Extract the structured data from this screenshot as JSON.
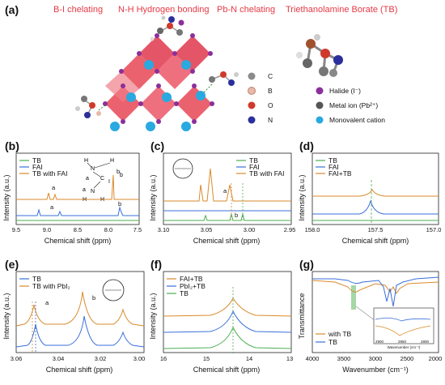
{
  "panel_a": {
    "letter": "(a)",
    "top_labels": [
      "B-I chelating",
      "N-H Hydrogen bonding",
      "Pb-N chelating",
      "Triethanolamine Borate (TB)"
    ],
    "legend": [
      {
        "label": "C",
        "color": "#8a8a8a"
      },
      {
        "label": "B",
        "color": "#e8b8a8"
      },
      {
        "label": "O",
        "color": "#d0392b"
      },
      {
        "label": "N",
        "color": "#2b2f9c"
      },
      {
        "label": "Halide (I⁻)",
        "color": "#8b2f9b"
      },
      {
        "label": "Metal ion (Pb²⁺)",
        "color": "#555555"
      },
      {
        "label": "Monovalent cation",
        "color": "#29a9e0"
      }
    ]
  },
  "panel_b": {
    "letter": "(b)",
    "legend": [
      "TB",
      "FAI",
      "TB with FAI"
    ],
    "xlabel": "Chemical shift (ppm)",
    "ylabel": "Intensity (a.u.)",
    "peak_labels": [
      "a",
      "b",
      "a",
      "b"
    ],
    "struct_labels": [
      "H",
      "H",
      "N",
      "C",
      "N",
      "H",
      "H",
      "b",
      "a",
      "a",
      "I"
    ],
    "chart_data": {
      "type": "line",
      "x": [
        9.5,
        9.0,
        8.5,
        8.0,
        7.5
      ],
      "xlim": [
        9.5,
        7.5
      ],
      "ticks": [
        "9.5",
        "9.0",
        "8.5",
        "8.0",
        "7.5"
      ],
      "series": [
        {
          "name": "TB",
          "color": "#4caf50"
        },
        {
          "name": "FAI",
          "color": "#3a6fd8"
        },
        {
          "name": "TB with FAI",
          "color": "#d98a2b"
        }
      ]
    }
  },
  "panel_c": {
    "letter": "(c)",
    "legend": [
      "TB",
      "FAI",
      "TB with FAI"
    ],
    "xlabel": "Chemical shift (ppm)",
    "ylabel": "Intensity (a.u.)",
    "peak_labels": [
      "a",
      "b"
    ],
    "chart_data": {
      "type": "line",
      "xlim": [
        3.1,
        2.95
      ],
      "ticks": [
        "3.10",
        "3.05",
        "3.00",
        "2.95"
      ],
      "series": [
        {
          "name": "TB",
          "color": "#4caf50"
        },
        {
          "name": "FAI",
          "color": "#3a6fd8"
        },
        {
          "name": "TB with FAI",
          "color": "#d98a2b"
        }
      ]
    }
  },
  "panel_d": {
    "letter": "(d)",
    "legend": [
      "TB",
      "FAI",
      "FAI+TB"
    ],
    "xlabel": "Chemical shift (ppm)",
    "ylabel": "Intensity (a.u.)",
    "chart_data": {
      "type": "line",
      "xlim": [
        158.0,
        157.0
      ],
      "ticks": [
        "158.0",
        "157.5",
        "157.0"
      ],
      "series": [
        {
          "name": "TB",
          "color": "#4caf50"
        },
        {
          "name": "FAI",
          "color": "#3a6fd8"
        },
        {
          "name": "FAI+TB",
          "color": "#d98a2b"
        }
      ]
    }
  },
  "panel_e": {
    "letter": "(e)",
    "legend": [
      "TB",
      "TB with PbI₂"
    ],
    "xlabel": "Chemical shift (ppm)",
    "ylabel": "Intensity (a.u.)",
    "peak_labels": [
      "a",
      "b"
    ],
    "chart_data": {
      "type": "line",
      "xlim": [
        3.06,
        3.0
      ],
      "ticks": [
        "3.06",
        "3.04",
        "3.02",
        "3.00"
      ],
      "series": [
        {
          "name": "TB",
          "color": "#3a6fd8"
        },
        {
          "name": "TB with PbI₂",
          "color": "#d98a2b"
        }
      ]
    }
  },
  "panel_f": {
    "letter": "(f)",
    "legend": [
      "FAI+TB",
      "PbI₂+TB",
      "TB"
    ],
    "xlabel": "Chemical shift (ppm)",
    "ylabel": "Intensity (a.u.)",
    "chart_data": {
      "type": "line",
      "xlim": [
        16,
        13
      ],
      "ticks": [
        "16",
        "15",
        "14",
        "13"
      ],
      "series": [
        {
          "name": "FAI+TB",
          "color": "#d98a2b"
        },
        {
          "name": "PbI₂+TB",
          "color": "#3a6fd8"
        },
        {
          "name": "TB",
          "color": "#4caf50"
        }
      ]
    }
  },
  "panel_g": {
    "letter": "(g)",
    "legend": [
      "with TB",
      "TB"
    ],
    "xlabel": "Wavenumber (cm⁻¹)",
    "ylabel": "Transmittance",
    "inset_xlabel": "Wavenumber (cm⁻¹)",
    "inset_ticks": [
      "2900",
      "2950",
      "2800"
    ],
    "chart_data": {
      "type": "line",
      "xlim": [
        4000,
        2000
      ],
      "ticks": [
        "4000",
        "3500",
        "3000",
        "2500",
        "2000"
      ],
      "series": [
        {
          "name": "with TB",
          "color": "#d98a2b"
        },
        {
          "name": "TB",
          "color": "#3a6fd8"
        }
      ]
    }
  }
}
